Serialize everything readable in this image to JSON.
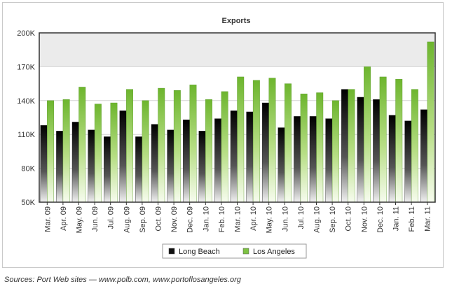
{
  "caption": "Sources: Port Web sites — www.polb.com, www.portoflosangeles.org",
  "chart_data": {
    "type": "bar",
    "title": "Exports",
    "xlabel": "",
    "ylabel": "",
    "ylim": [
      50000,
      200000
    ],
    "yticks": [
      50000,
      80000,
      110000,
      140000,
      170000,
      200000
    ],
    "ytick_labels": [
      "50K",
      "80K",
      "110K",
      "140K",
      "170K",
      "200K"
    ],
    "categories": [
      "Mar. 09",
      "Apr. 09",
      "May. 09",
      "Jun. 09",
      "Jul. 09",
      "Aug. 09",
      "Sep. 09",
      "Oct. 09",
      "Nov. 09",
      "Dec. 09",
      "Jan. 10",
      "Feb. 10",
      "Mar. 10",
      "Apr. 10",
      "May. 10",
      "Jun. 10",
      "Jul. 10",
      "Aug. 10",
      "Sep. 10",
      "Oct. 10",
      "Nov. 10",
      "Dec. 10",
      "Jan. 11",
      "Feb. 11",
      "Mar. 11"
    ],
    "series": [
      {
        "name": "Long Beach",
        "color": "#111111",
        "values": [
          118000,
          113000,
          121000,
          114000,
          108000,
          131000,
          108000,
          119000,
          114000,
          123000,
          113000,
          124000,
          131000,
          130000,
          138000,
          116000,
          126000,
          126000,
          124000,
          150000,
          143000,
          141000,
          127000,
          122000,
          132000
        ]
      },
      {
        "name": "Los Angeles",
        "color": "#7dc242",
        "values": [
          140000,
          141000,
          152000,
          137000,
          138000,
          150000,
          140000,
          151000,
          149000,
          154000,
          141000,
          148000,
          161000,
          158000,
          160000,
          155000,
          146000,
          147000,
          140000,
          150000,
          170000,
          161000,
          159000,
          150000,
          192000
        ]
      }
    ],
    "grid": true,
    "legend_position": "bottom-center",
    "band_color": "#ebebeb"
  }
}
